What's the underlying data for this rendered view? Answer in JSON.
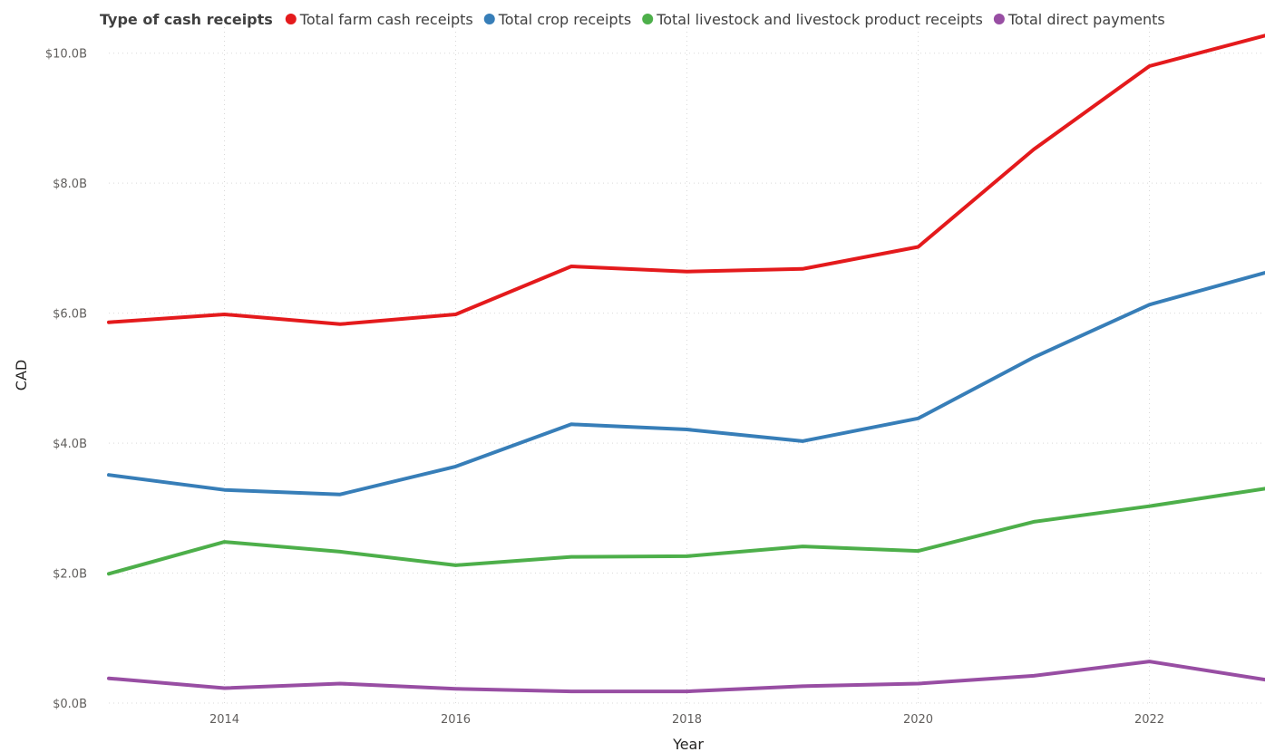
{
  "chart_data": {
    "type": "line",
    "legend": {
      "title": "Type of cash receipts",
      "position": "top-left"
    },
    "xlabel": "Year",
    "ylabel": "CAD",
    "x": [
      2013,
      2014,
      2015,
      2016,
      2017,
      2018,
      2019,
      2020,
      2021,
      2022,
      2023
    ],
    "xlim": [
      2013,
      2023
    ],
    "xticks": [
      {
        "value": 2014,
        "label": "2014"
      },
      {
        "value": 2016,
        "label": "2016"
      },
      {
        "value": 2018,
        "label": "2018"
      },
      {
        "value": 2020,
        "label": "2020"
      },
      {
        "value": 2022,
        "label": "2022"
      }
    ],
    "ylim": [
      0,
      10.4
    ],
    "yticks": [
      {
        "value": 0,
        "label": "$0.0B"
      },
      {
        "value": 2,
        "label": "$2.0B"
      },
      {
        "value": 4,
        "label": "$4.0B"
      },
      {
        "value": 6,
        "label": "$6.0B"
      },
      {
        "value": 8,
        "label": "$8.0B"
      },
      {
        "value": 10,
        "label": "$10.0B"
      }
    ],
    "grid": true,
    "series": [
      {
        "name": "Total farm cash receipts",
        "color": "#e41a1c",
        "values": [
          5.86,
          5.98,
          5.83,
          5.98,
          6.72,
          6.64,
          6.68,
          7.02,
          8.52,
          9.8,
          10.27
        ]
      },
      {
        "name": "Total crop receipts",
        "color": "#377eb8",
        "values": [
          3.51,
          3.28,
          3.21,
          3.64,
          4.29,
          4.21,
          4.03,
          4.38,
          5.32,
          6.13,
          6.62
        ]
      },
      {
        "name": "Total livestock and livestock product receipts",
        "color": "#4daf4a",
        "values": [
          1.99,
          2.48,
          2.33,
          2.12,
          2.25,
          2.26,
          2.41,
          2.34,
          2.79,
          3.03,
          3.3
        ]
      },
      {
        "name": "Total direct payments",
        "color": "#984ea3",
        "values": [
          0.38,
          0.23,
          0.3,
          0.22,
          0.18,
          0.18,
          0.26,
          0.3,
          0.42,
          0.64,
          0.36
        ]
      }
    ]
  }
}
